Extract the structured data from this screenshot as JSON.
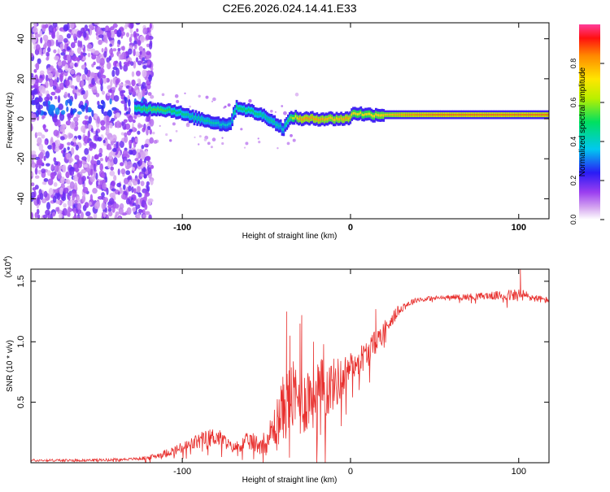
{
  "page_title": "C2E6.2026.024.14.41.E33",
  "chart_data": [
    {
      "type": "heatmap",
      "title": "C2E6.2026.024.14.41.E33",
      "xlabel": "Height of straight line (km)",
      "ylabel": "Frequency (Hz)",
      "xlim": [
        -190,
        118
      ],
      "ylim": [
        -50,
        48
      ],
      "xticks": [
        -100,
        0,
        100
      ],
      "xtick_labels": [
        "-100",
        "0",
        "100"
      ],
      "yticks": [
        -40,
        -20,
        0,
        20,
        40
      ],
      "ytick_labels": [
        "-40",
        "-20",
        "0",
        "20",
        "40"
      ],
      "noise_region_x": [
        -190,
        -118
      ],
      "ridge": {
        "x": [
          -128,
          -115,
          -105,
          -95,
          -85,
          -75,
          -71,
          -68,
          -60,
          -50,
          -45,
          -40,
          -35,
          -30,
          -20,
          -10,
          -2,
          0,
          2,
          10,
          20,
          30,
          50,
          80,
          118
        ],
        "y": [
          5,
          5,
          4,
          1,
          -1,
          -3,
          -2,
          6,
          4,
          1,
          -2,
          -5,
          1,
          0,
          0,
          0,
          0,
          1,
          3,
          2,
          2,
          2,
          2,
          2,
          2
        ],
        "amplitude": [
          0.5,
          0.55,
          0.5,
          0.45,
          0.45,
          0.4,
          0.4,
          0.5,
          0.5,
          0.45,
          0.45,
          0.4,
          0.6,
          0.8,
          0.8,
          0.75,
          0.8,
          0.75,
          0.7,
          0.7,
          0.75,
          0.8,
          0.85,
          0.85,
          0.85
        ]
      },
      "colorbar": {
        "label": "Normalized spectral amplitude",
        "range": [
          0.0,
          1.0
        ],
        "ticks": [
          0.0,
          0.2,
          0.4,
          0.6,
          0.8
        ],
        "tick_labels": [
          "0.0",
          "0.2",
          "0.4",
          "0.6",
          "0.8"
        ]
      }
    },
    {
      "type": "line",
      "xlabel": "Height of straight line (km)",
      "ylabel": "SNR (10 * v/v)",
      "y_multiplier": "(x10",
      "y_multiplier_exp": "4",
      "y_multiplier_close": ")",
      "xlim": [
        -190,
        118
      ],
      "ylim": [
        0,
        1.6
      ],
      "xticks": [
        -100,
        0,
        100
      ],
      "xtick_labels": [
        "-100",
        "0",
        "100"
      ],
      "yticks": [
        0.5,
        1.0,
        1.5
      ],
      "ytick_labels": [
        "0.5",
        "1.0",
        "1.5"
      ],
      "series": [
        {
          "name": "SNR",
          "color": "#e8312f",
          "x": [
            -190,
            -160,
            -130,
            -120,
            -110,
            -100,
            -90,
            -80,
            -75,
            -70,
            -65,
            -60,
            -55,
            -50,
            -45,
            -40,
            -35,
            -30,
            -25,
            -20,
            -15,
            -10,
            -5,
            0,
            5,
            10,
            15,
            20,
            25,
            30,
            35,
            40,
            50,
            60,
            70,
            80,
            90,
            100,
            110,
            118
          ],
          "y": [
            0.02,
            0.02,
            0.03,
            0.04,
            0.08,
            0.12,
            0.18,
            0.22,
            0.18,
            0.12,
            0.15,
            0.18,
            0.15,
            0.18,
            0.3,
            0.45,
            0.55,
            0.5,
            0.55,
            0.6,
            0.6,
            0.65,
            0.7,
            0.8,
            0.85,
            0.9,
            1.0,
            1.1,
            1.2,
            1.28,
            1.32,
            1.35,
            1.36,
            1.37,
            1.37,
            1.38,
            1.38,
            1.39,
            1.36,
            1.34
          ],
          "noise": [
            0.01,
            0.01,
            0.01,
            0.02,
            0.03,
            0.05,
            0.07,
            0.08,
            0.06,
            0.04,
            0.06,
            0.08,
            0.08,
            0.1,
            0.18,
            0.28,
            0.3,
            0.3,
            0.3,
            0.3,
            0.25,
            0.22,
            0.18,
            0.12,
            0.12,
            0.12,
            0.1,
            0.08,
            0.06,
            0.04,
            0.03,
            0.02,
            0.02,
            0.02,
            0.03,
            0.03,
            0.04,
            0.06,
            0.03,
            0.03
          ],
          "spikes": [
            {
              "x": -38,
              "y": 1.25
            },
            {
              "x": -36,
              "y": 1.05
            },
            {
              "x": -30,
              "y": 1.15
            },
            {
              "x": -29,
              "y": 1.22
            },
            {
              "x": -22,
              "y": 1.0
            },
            {
              "x": -16,
              "y": 0.98
            },
            {
              "x": 15,
              "y": 1.27
            },
            {
              "x": 101,
              "y": 1.6
            }
          ]
        }
      ]
    }
  ]
}
